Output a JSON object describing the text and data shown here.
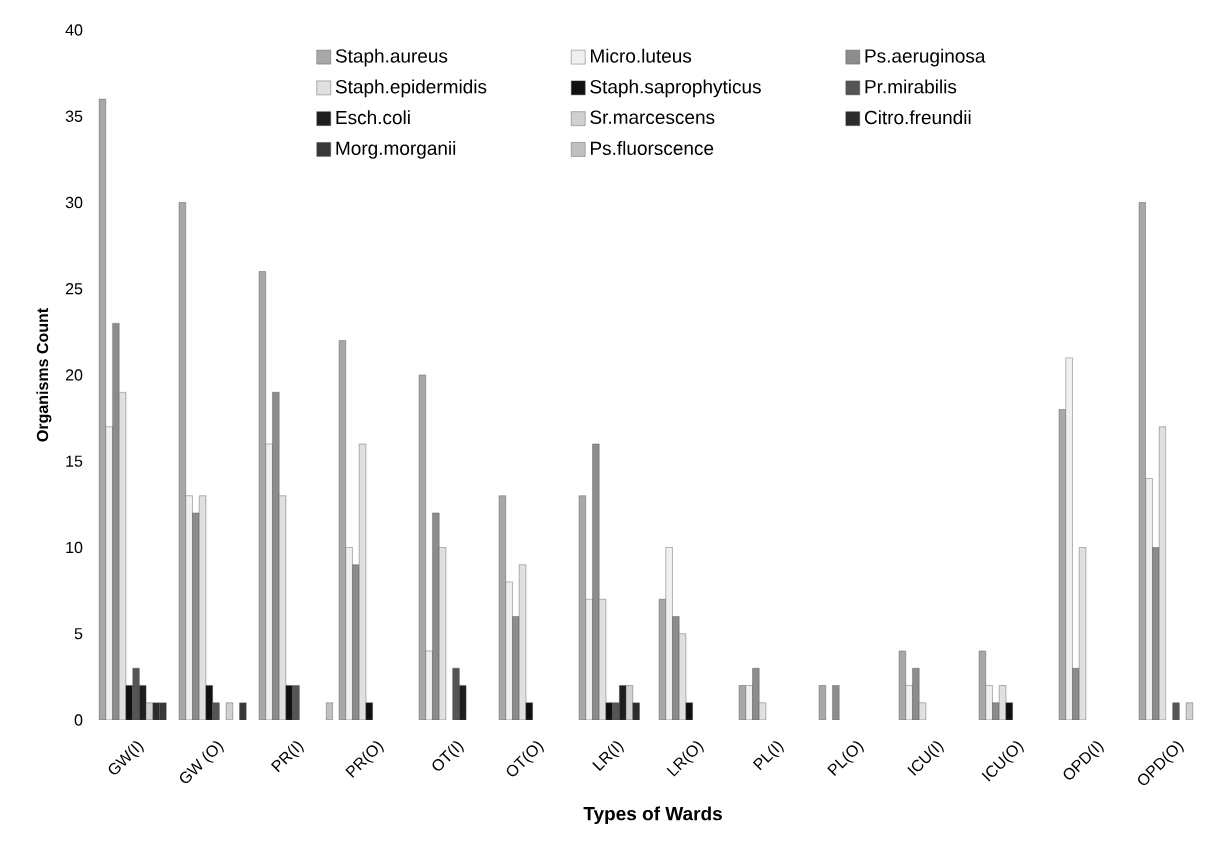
{
  "chart_data": {
    "type": "bar",
    "xlabel": "Types of Wards",
    "ylabel": "Organisms Count",
    "categories": [
      "GW(I)",
      "GW (O)",
      "PR(I)",
      "PR(O)",
      "OT(I)",
      "OT(O)",
      "LR(I)",
      "LR(O)",
      "PL(I)",
      "PL(O)",
      "ICU(I)",
      "ICU(O)",
      "OPD(I)",
      "OPD(O)"
    ],
    "ylim": [
      0,
      40
    ],
    "yticks": [
      0,
      5,
      10,
      15,
      20,
      25,
      30,
      35,
      40
    ],
    "legend": "top",
    "series": [
      {
        "name": "Staph.aureus",
        "color": "#a8a8a8",
        "values": [
          36,
          30,
          26,
          22,
          20,
          13,
          13,
          7,
          2,
          2,
          4,
          4,
          18,
          30
        ]
      },
      {
        "name": "Micro.luteus",
        "color": "#f0f0f0",
        "values": [
          17,
          13,
          16,
          10,
          4,
          8,
          7,
          10,
          2,
          0,
          2,
          2,
          21,
          14
        ]
      },
      {
        "name": "Ps.aeruginosa",
        "color": "#8c8c8c",
        "values": [
          23,
          12,
          19,
          9,
          12,
          6,
          16,
          6,
          3,
          2,
          3,
          1,
          3,
          10
        ]
      },
      {
        "name": "Staph.epidermidis",
        "color": "#e0e0e0",
        "values": [
          19,
          13,
          13,
          16,
          10,
          9,
          7,
          5,
          1,
          0,
          1,
          2,
          10,
          17
        ]
      },
      {
        "name": "Staph.saprophyticus",
        "color": "#111111",
        "values": [
          2,
          2,
          2,
          1,
          0,
          1,
          1,
          1,
          0,
          0,
          0,
          1,
          0,
          0
        ]
      },
      {
        "name": "Pr.mirabilis",
        "color": "#555555",
        "values": [
          3,
          1,
          2,
          0,
          3,
          0,
          1,
          0,
          0,
          0,
          0,
          0,
          0,
          1
        ]
      },
      {
        "name": "Esch.coli",
        "color": "#1e1e1e",
        "values": [
          2,
          0,
          0,
          0,
          2,
          0,
          2,
          0,
          0,
          0,
          0,
          0,
          0,
          0
        ]
      },
      {
        "name": "Sr.marcescens",
        "color": "#d0d0d0",
        "values": [
          1,
          1,
          0,
          0,
          0,
          0,
          2,
          0,
          0,
          0,
          0,
          0,
          0,
          1
        ]
      },
      {
        "name": "Citro.freundii",
        "color": "#2b2b2b",
        "values": [
          1,
          0,
          0,
          0,
          0,
          0,
          1,
          0,
          0,
          0,
          0,
          0,
          0,
          0
        ]
      },
      {
        "name": "Morg.morganii",
        "color": "#383838",
        "values": [
          1,
          1,
          0,
          0,
          0,
          0,
          0,
          0,
          0,
          0,
          0,
          0,
          0,
          0
        ]
      },
      {
        "name": "Ps.fluorscence",
        "color": "#c0c0c0",
        "values": [
          0,
          0,
          1,
          0,
          0,
          0,
          0,
          0,
          0,
          0,
          0,
          0,
          0,
          0
        ]
      }
    ]
  }
}
